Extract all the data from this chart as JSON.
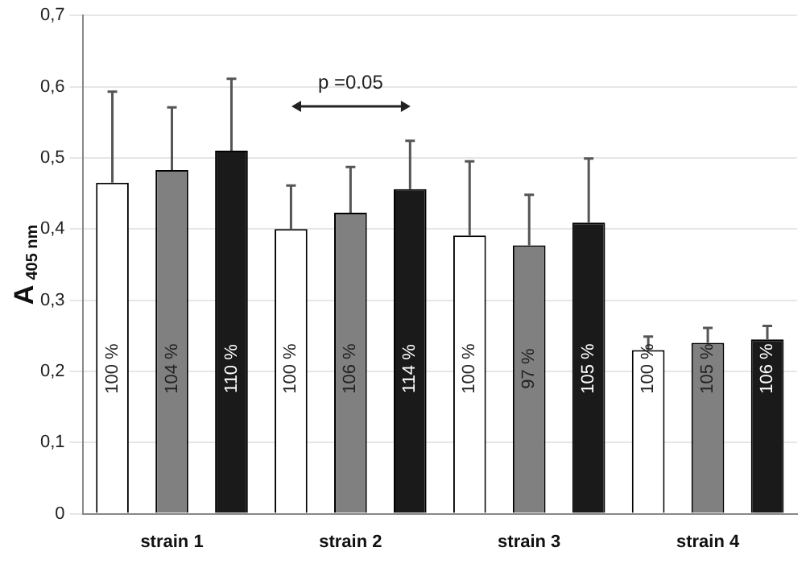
{
  "chart_data": {
    "type": "bar",
    "ylabel": "A$_{405 nm}$",
    "categories": [
      "strain 1",
      "strain 2",
      "strain 3",
      "strain 4"
    ],
    "series": [
      {
        "color": "#ffffff",
        "values": [
          0.465,
          0.4,
          0.391,
          0.23
        ],
        "errors": [
          [
            0.465,
            0.593
          ],
          [
            0.4,
            0.461
          ],
          [
            0.391,
            0.495
          ],
          [
            0.23,
            0.249
          ]
        ]
      },
      {
        "color": "#808080",
        "values": [
          0.483,
          0.423,
          0.377,
          0.24
        ],
        "errors": [
          [
            0.483,
            0.571
          ],
          [
            0.423,
            0.487
          ],
          [
            0.377,
            0.448
          ],
          [
            0.24,
            0.261
          ]
        ]
      },
      {
        "color": "#1a1a1a",
        "values": [
          0.51,
          0.456,
          0.409,
          0.245
        ],
        "errors": [
          [
            0.51,
            0.611
          ],
          [
            0.456,
            0.524
          ],
          [
            0.409,
            0.499
          ],
          [
            0.245,
            0.264
          ]
        ]
      }
    ],
    "ylim": [
      0,
      0.7
    ],
    "yticks": [
      0,
      {
        "value": 0.1,
        "label": "0,1"
      },
      {
        "value": 0.2,
        "label": "0,2"
      },
      {
        "value": 0.3,
        "label": "0,3"
      },
      {
        "value": 0.4,
        "label": "0,4"
      },
      {
        "value": 0.5,
        "label": "0,5"
      },
      {
        "value": 0.6,
        "label": "0,6"
      },
      {
        "value": 0.7,
        "label": "0,7"
      }
    ],
    "grid": "y",
    "legend": false,
    "annotations": [
      "100 %",
      "104 %",
      "110 %",
      "100 %",
      "106 %",
      "114 %",
      "100 %",
      "97 %",
      "105 %",
      "100 %",
      "105 %",
      "106 %",
      "p =0.05"
    ]
  }
}
